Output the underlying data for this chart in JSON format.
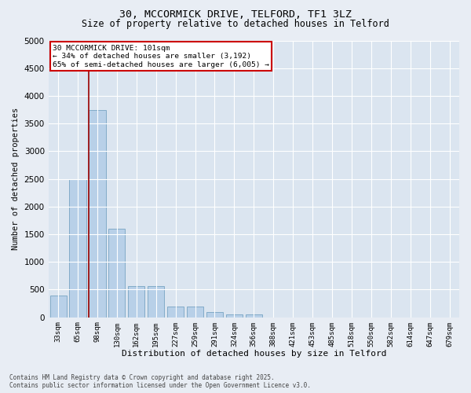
{
  "title1": "30, MCCORMICK DRIVE, TELFORD, TF1 3LZ",
  "title2": "Size of property relative to detached houses in Telford",
  "xlabel": "Distribution of detached houses by size in Telford",
  "ylabel": "Number of detached properties",
  "categories": [
    "33sqm",
    "65sqm",
    "98sqm",
    "130sqm",
    "162sqm",
    "195sqm",
    "227sqm",
    "259sqm",
    "291sqm",
    "324sqm",
    "356sqm",
    "388sqm",
    "421sqm",
    "453sqm",
    "485sqm",
    "518sqm",
    "550sqm",
    "582sqm",
    "614sqm",
    "647sqm",
    "679sqm"
  ],
  "values": [
    400,
    2500,
    3750,
    1600,
    560,
    560,
    200,
    200,
    100,
    50,
    50,
    0,
    0,
    0,
    0,
    0,
    0,
    0,
    0,
    0,
    0
  ],
  "bar_color": "#b8d0e8",
  "bar_edge_color": "#6699bb",
  "vline_color": "#990000",
  "annotation_text": "30 MCCORMICK DRIVE: 101sqm\n← 34% of detached houses are smaller (3,192)\n65% of semi-detached houses are larger (6,005) →",
  "annotation_box_color": "#cc0000",
  "ylim": [
    0,
    5000
  ],
  "yticks": [
    0,
    500,
    1000,
    1500,
    2000,
    2500,
    3000,
    3500,
    4000,
    4500,
    5000
  ],
  "bg_color": "#e8edf4",
  "plot_bg_color": "#dbe5f0",
  "grid_color": "#ffffff",
  "footer1": "Contains HM Land Registry data © Crown copyright and database right 2025.",
  "footer2": "Contains public sector information licensed under the Open Government Licence v3.0."
}
